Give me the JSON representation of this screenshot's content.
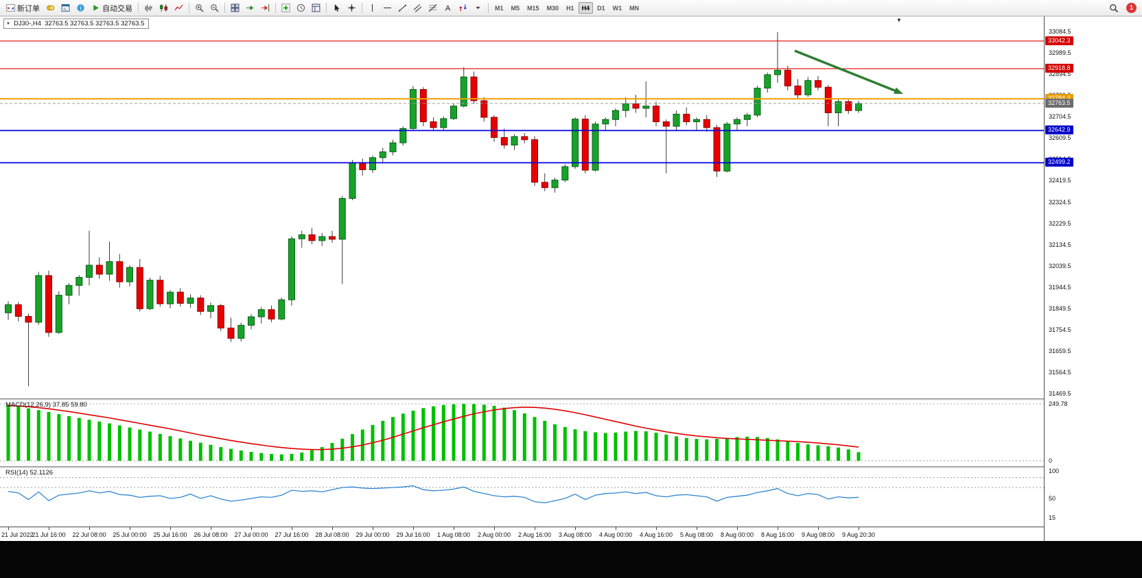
{
  "toolbar": {
    "new_order_label": "新订单",
    "auto_trading_label": "自动交易",
    "timeframes": [
      "M1",
      "M5",
      "M15",
      "M30",
      "H1",
      "H4",
      "D1",
      "W1",
      "MN"
    ],
    "active_timeframe": "H4",
    "notification_count": "1",
    "groups": [
      [
        {
          "name": "new-order",
          "label": "新订单"
        },
        {
          "name": "symbols"
        },
        {
          "name": "market-watch"
        },
        {
          "name": "data-window"
        },
        {
          "name": "auto-trading",
          "label": "自动交易"
        }
      ],
      [
        {
          "name": "bars-chart"
        },
        {
          "name": "candles-chart"
        },
        {
          "name": "line-chart"
        }
      ],
      [
        {
          "name": "zoom-in"
        },
        {
          "name": "zoom-out"
        }
      ],
      [
        {
          "name": "tile-windows"
        },
        {
          "name": "auto-scroll"
        },
        {
          "name": "chart-shift"
        }
      ],
      [
        {
          "name": "add-indicator"
        },
        {
          "name": "clock"
        },
        {
          "name": "templates"
        }
      ],
      [
        {
          "name": "cursor"
        },
        {
          "name": "crosshair"
        }
      ],
      [
        {
          "name": "vertical-line"
        },
        {
          "name": "horizontal-line"
        },
        {
          "name": "trendline"
        },
        {
          "name": "channel"
        },
        {
          "name": "fibonacci"
        },
        {
          "name": "text"
        },
        {
          "name": "arrows"
        },
        {
          "name": "more"
        }
      ]
    ]
  },
  "chart": {
    "symbol": "DJ30-,H4",
    "ohlc_text": "32763.5 32763.5 32763.5 32763.5",
    "up_color": "#17a32a",
    "down_color": "#e80000",
    "arrow": {
      "color": "#2e7d32"
    },
    "axis": {
      "max": 33084.5,
      "min": 31469.5,
      "tick_labels": [
        "33084.5",
        "32989.5",
        "32894.5",
        "32799.5",
        "32704.5",
        "32609.5",
        "32514.5",
        "32419.5",
        "32324.5",
        "32229.5",
        "32134.5",
        "32039.5",
        "31944.5",
        "31849.5",
        "31754.5",
        "31659.5",
        "31564.5",
        "31469.5"
      ]
    },
    "levels": [
      {
        "value": 33042.3,
        "text": "33042.3",
        "color": "#e00000",
        "width": 1.2,
        "tag_bg": "#d40000"
      },
      {
        "value": 32918.8,
        "text": "32918.8",
        "color": "#e00000",
        "width": 1.2,
        "tag_bg": "#d40000"
      },
      {
        "value": 32784.3,
        "text": "32784.3",
        "color": "#f0a000",
        "width": 2,
        "tag_bg": "#e89a00"
      },
      {
        "value": 32763.5,
        "text": "32763.5",
        "color": "#9a9a9a",
        "width": 1,
        "dash": "4 3",
        "tag_bg": "#6b6b6b"
      },
      {
        "value": 32642.9,
        "text": "32642.9",
        "color": "#0000dd",
        "width": 1.8,
        "tag_bg": "#0000cc"
      },
      {
        "value": 32499.2,
        "text": "32499.2",
        "color": "#0000dd",
        "width": 1.8,
        "tag_bg": "#0000cc"
      }
    ],
    "candles": [
      [
        31830,
        31882,
        31798,
        31866
      ],
      [
        31866,
        31878,
        31792,
        31814
      ],
      [
        31814,
        31826,
        31502,
        31788
      ],
      [
        31788,
        32012,
        31776,
        31996
      ],
      [
        31996,
        32018,
        31722,
        31742
      ],
      [
        31742,
        31926,
        31736,
        31908
      ],
      [
        31908,
        31962,
        31868,
        31952
      ],
      [
        31952,
        31998,
        31906,
        31988
      ],
      [
        31988,
        32196,
        31952,
        32042
      ],
      [
        32042,
        32078,
        31982,
        32002
      ],
      [
        32002,
        32148,
        31972,
        32058
      ],
      [
        32058,
        32092,
        31942,
        31968
      ],
      [
        31968,
        32042,
        31948,
        32032
      ],
      [
        32032,
        32070,
        31836,
        31848
      ],
      [
        31848,
        31986,
        31842,
        31975
      ],
      [
        31975,
        31995,
        31856,
        31870
      ],
      [
        31870,
        31930,
        31850,
        31922
      ],
      [
        31922,
        31940,
        31858,
        31872
      ],
      [
        31872,
        31912,
        31852,
        31896
      ],
      [
        31896,
        31908,
        31820,
        31836
      ],
      [
        31836,
        31876,
        31806,
        31862
      ],
      [
        31862,
        31870,
        31748,
        31762
      ],
      [
        31762,
        31808,
        31700,
        31716
      ],
      [
        31716,
        31786,
        31702,
        31774
      ],
      [
        31774,
        31824,
        31756,
        31812
      ],
      [
        31812,
        31856,
        31782,
        31844
      ],
      [
        31844,
        31862,
        31788,
        31802
      ],
      [
        31802,
        31898,
        31796,
        31888
      ],
      [
        31888,
        32172,
        31862,
        32160
      ],
      [
        32160,
        32196,
        32120,
        32178
      ],
      [
        32178,
        32208,
        32136,
        32152
      ],
      [
        32152,
        32186,
        32128,
        32170
      ],
      [
        32170,
        32196,
        32142,
        32158
      ],
      [
        32158,
        32352,
        31958,
        32340
      ],
      [
        32340,
        32512,
        32332,
        32498
      ],
      [
        32498,
        32518,
        32442,
        32468
      ],
      [
        32468,
        32532,
        32454,
        32522
      ],
      [
        32522,
        32566,
        32502,
        32548
      ],
      [
        32548,
        32602,
        32532,
        32588
      ],
      [
        32588,
        32662,
        32576,
        32652
      ],
      [
        32652,
        32842,
        32646,
        32826
      ],
      [
        32826,
        32836,
        32662,
        32682
      ],
      [
        32682,
        32702,
        32642,
        32656
      ],
      [
        32656,
        32706,
        32646,
        32696
      ],
      [
        32696,
        32762,
        32690,
        32752
      ],
      [
        32752,
        32926,
        32746,
        32882
      ],
      [
        32882,
        32906,
        32762,
        32776
      ],
      [
        32776,
        32792,
        32682,
        32702
      ],
      [
        32702,
        32712,
        32592,
        32612
      ],
      [
        32612,
        32652,
        32562,
        32578
      ],
      [
        32578,
        32626,
        32556,
        32616
      ],
      [
        32616,
        32632,
        32586,
        32602
      ],
      [
        32602,
        32618,
        32396,
        32412
      ],
      [
        32412,
        32452,
        32372,
        32388
      ],
      [
        32388,
        32432,
        32366,
        32422
      ],
      [
        32422,
        32492,
        32412,
        32482
      ],
      [
        32482,
        32702,
        32472,
        32694
      ],
      [
        32694,
        32712,
        32452,
        32466
      ],
      [
        32466,
        32682,
        32460,
        32672
      ],
      [
        32672,
        32702,
        32642,
        32692
      ],
      [
        32692,
        32742,
        32662,
        32732
      ],
      [
        32732,
        32792,
        32702,
        32762
      ],
      [
        32762,
        32802,
        32722,
        32742
      ],
      [
        32742,
        32862,
        32702,
        32752
      ],
      [
        32752,
        32772,
        32662,
        32682
      ],
      [
        32682,
        32692,
        32452,
        32662
      ],
      [
        32662,
        32732,
        32642,
        32716
      ],
      [
        32716,
        32746,
        32666,
        32682
      ],
      [
        32682,
        32702,
        32642,
        32692
      ],
      [
        32692,
        32712,
        32638,
        32656
      ],
      [
        32656,
        32668,
        32436,
        32462
      ],
      [
        32462,
        32682,
        32456,
        32672
      ],
      [
        32672,
        32702,
        32642,
        32692
      ],
      [
        32692,
        32722,
        32662,
        32712
      ],
      [
        32712,
        32842,
        32702,
        32832
      ],
      [
        32832,
        32902,
        32812,
        32892
      ],
      [
        32892,
        33082,
        32856,
        32912
      ],
      [
        32912,
        32932,
        32822,
        32842
      ],
      [
        32842,
        32872,
        32782,
        32802
      ],
      [
        32802,
        32882,
        32792,
        32866
      ],
      [
        32866,
        32886,
        32822,
        32836
      ],
      [
        32836,
        32846,
        32662,
        32722
      ],
      [
        32722,
        32782,
        32662,
        32772
      ],
      [
        32772,
        32786,
        32716,
        32732
      ],
      [
        32732,
        32776,
        32722,
        32763.5
      ]
    ]
  },
  "macd": {
    "label": "MACD(12,26,9)",
    "values_text": "37.85 59.80",
    "axis_labels": [
      "249.78",
      "0"
    ],
    "max": 249.78,
    "hist_color": "#00c000",
    "signal_color": "#e00000",
    "histogram": [
      245,
      238,
      230,
      222,
      214,
      205,
      196,
      188,
      180,
      172,
      164,
      155,
      146,
      137,
      128,
      118,
      108,
      98,
      88,
      79,
      70,
      60,
      52,
      45,
      39,
      34,
      30,
      28,
      30,
      36,
      46,
      60,
      78,
      97,
      117,
      137,
      157,
      175,
      192,
      207,
      220,
      231,
      239,
      245,
      248,
      250,
      249,
      246,
      241,
      233,
      222,
      208,
      192,
      175,
      160,
      148,
      138,
      130,
      125,
      122,
      124,
      128,
      131,
      129,
      123,
      115,
      107,
      100,
      96,
      94,
      96,
      100,
      104,
      106,
      104,
      100,
      94,
      86,
      78,
      72,
      68,
      64,
      58,
      50,
      38
    ],
    "signal": [
      242,
      240,
      237,
      233,
      228,
      222,
      216,
      209,
      202,
      195,
      188,
      180,
      172,
      164,
      156,
      148,
      140,
      131,
      122,
      113,
      105,
      97,
      89,
      82,
      75,
      69,
      63,
      58,
      54,
      51,
      49,
      49,
      51,
      55,
      61,
      69,
      79,
      90,
      103,
      117,
      131,
      145,
      158,
      171,
      183,
      195,
      206,
      215,
      223,
      229,
      233,
      235,
      234,
      231,
      226,
      219,
      211,
      202,
      192,
      182,
      172,
      162,
      152,
      143,
      135,
      127,
      120,
      114,
      109,
      105,
      101,
      98,
      96,
      94,
      92,
      90,
      88,
      86,
      84,
      81,
      78,
      74,
      70,
      65,
      60
    ]
  },
  "rsi": {
    "label": "RSI(14)",
    "value_text": "52.1126",
    "axis_labels": [
      "100",
      "50",
      "15"
    ],
    "levels": [
      88,
      70
    ],
    "color": "#2e86d0",
    "series": [
      63,
      60,
      48,
      62,
      46,
      56,
      58,
      60,
      64,
      60,
      63,
      57,
      56,
      52,
      54,
      55,
      50,
      52,
      58,
      50,
      55,
      49,
      45,
      47,
      50,
      53,
      52,
      56,
      65,
      63,
      64,
      62,
      66,
      70,
      71,
      69,
      68,
      69,
      70,
      71,
      73,
      66,
      64,
      65,
      67,
      71,
      63,
      59,
      55,
      53,
      54,
      52,
      44,
      42,
      46,
      50,
      58,
      48,
      56,
      59,
      60,
      62,
      59,
      61,
      55,
      53,
      56,
      57,
      55,
      53,
      45,
      52,
      54,
      56,
      61,
      64,
      68,
      59,
      55,
      59,
      57,
      49,
      53,
      51,
      52.1
    ]
  },
  "time_axis": {
    "labels": [
      "21 Jul 2022",
      "21 Jul 16:00",
      "22 Jul 08:00",
      "25 Jul 00:00",
      "25 Jul 16:00",
      "26 Jul 08:00",
      "27 Jul 00:00",
      "27 Jul 16:00",
      "28 Jul 08:00",
      "29 Jul 00:00",
      "29 Jul 16:00",
      "1 Aug 08:00",
      "2 Aug 00:00",
      "2 Aug 16:00",
      "3 Aug 08:00",
      "4 Aug 00:00",
      "4 Aug 16:00",
      "5 Aug 08:00",
      "8 Aug 00:00",
      "8 Aug 16:00",
      "9 Aug 08:00",
      "9 Aug 20:30"
    ]
  }
}
